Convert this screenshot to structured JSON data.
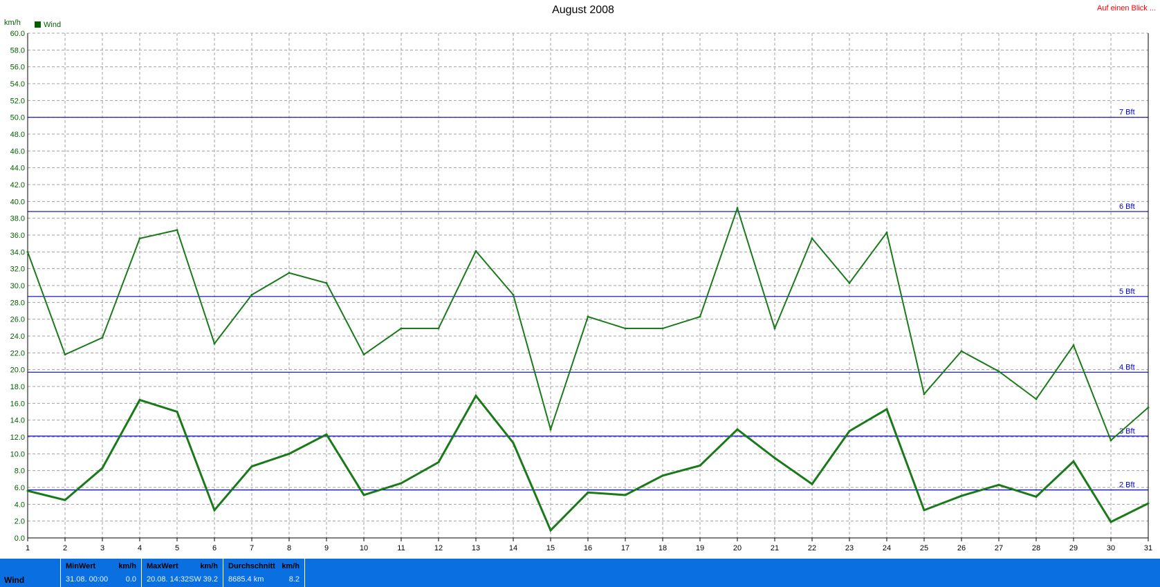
{
  "header": {
    "title": "August 2008",
    "link_label": "Auf einen Blick ..."
  },
  "colors": {
    "series": "#1a7a1a",
    "reference_lines": "#0000d0",
    "grid": "#a0a0a0",
    "stat_bar": "#0a6fe0",
    "link": "#ff0000"
  },
  "chart_data": {
    "type": "line",
    "title": "August 2008",
    "ylabel": "km/h",
    "xlabel": "",
    "ylim": [
      0,
      60
    ],
    "y_ticks": [
      "0.0",
      "2.0",
      "4.0",
      "6.0",
      "8.0",
      "10.0",
      "12.0",
      "14.0",
      "16.0",
      "18.0",
      "20.0",
      "22.0",
      "24.0",
      "26.0",
      "28.0",
      "30.0",
      "32.0",
      "34.0",
      "36.0",
      "38.0",
      "40.0",
      "42.0",
      "44.0",
      "46.0",
      "48.0",
      "50.0",
      "52.0",
      "54.0",
      "56.0",
      "58.0",
      "60.0"
    ],
    "x": [
      1,
      2,
      3,
      4,
      5,
      6,
      7,
      8,
      9,
      10,
      11,
      12,
      13,
      14,
      15,
      16,
      17,
      18,
      19,
      20,
      21,
      22,
      23,
      24,
      25,
      26,
      27,
      28,
      29,
      30,
      31
    ],
    "legend": "Wind",
    "grid": true,
    "series": [
      {
        "role": "max",
        "values": [
          34.0,
          21.8,
          23.8,
          35.6,
          36.6,
          23.1,
          28.9,
          31.5,
          30.3,
          21.8,
          24.9,
          24.9,
          34.1,
          28.9,
          12.9,
          26.3,
          24.9,
          24.9,
          26.3,
          39.2,
          24.9,
          35.6,
          30.3,
          36.3,
          17.1,
          22.2,
          19.8,
          16.5,
          22.9,
          11.6,
          15.5
        ]
      },
      {
        "role": "average",
        "values": [
          5.6,
          4.5,
          8.3,
          16.4,
          15.0,
          3.3,
          8.5,
          10.0,
          12.3,
          5.1,
          6.5,
          9.0,
          16.9,
          11.3,
          0.9,
          5.4,
          5.1,
          7.4,
          8.6,
          12.9,
          9.5,
          6.4,
          12.7,
          15.3,
          3.3,
          5.0,
          6.3,
          4.9,
          9.1,
          1.9,
          4.1
        ]
      }
    ],
    "reference_lines": [
      {
        "label": "2 Bft",
        "value": 5.7
      },
      {
        "label": "3 Bft",
        "value": 12.1
      },
      {
        "label": "4 Bft",
        "value": 19.7
      },
      {
        "label": "5 Bft",
        "value": 28.7
      },
      {
        "label": "6 Bft",
        "value": 38.8
      },
      {
        "label": "7 Bft",
        "value": 50.0
      }
    ]
  },
  "stats": {
    "row_label": "Wind",
    "min": {
      "header": "MinWert",
      "unit": "km/h",
      "time": "31.08.  00:00",
      "value": "0.0"
    },
    "max": {
      "header": "MaxWert",
      "unit": "km/h",
      "time": "20.08.  14:32SW",
      "value": "39.2"
    },
    "avg": {
      "header": "Durchschnitt",
      "unit": "km/h",
      "time": "8685.4 km",
      "value": "8.2"
    }
  }
}
